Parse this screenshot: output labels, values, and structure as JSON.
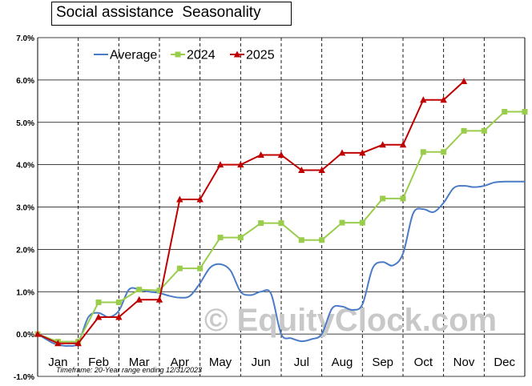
{
  "chart_data": {
    "type": "line",
    "title": "Social assistance  Seasonality",
    "footnote": "Timeframe: 20-Year range ending 12/31/2023",
    "watermark": "© EquityClock.com",
    "months": [
      "Jan",
      "Feb",
      "Mar",
      "Apr",
      "May",
      "Jun",
      "Jul",
      "Aug",
      "Sep",
      "Oct",
      "Nov",
      "Dec"
    ],
    "y_ticks": [
      "-1.0%",
      "0.0%",
      "1.0%",
      "2.0%",
      "3.0%",
      "4.0%",
      "5.0%",
      "6.0%",
      "7.0%"
    ],
    "ylim": [
      -1.0,
      7.0
    ],
    "xlim": [
      0,
      12
    ],
    "grid": "vertical dashed at month boundaries, horizontal at each 1%",
    "legend_position": "top-left",
    "series": [
      {
        "name": "Average",
        "color": "#4a7bc6",
        "marker": "none",
        "smooth": true,
        "x": [
          0,
          0.35,
          0.5,
          0.75,
          1.0,
          1.25,
          1.5,
          1.75,
          2.0,
          2.25,
          2.5,
          2.75,
          3.0,
          3.25,
          3.5,
          3.75,
          4.0,
          4.25,
          4.5,
          4.75,
          5.0,
          5.25,
          5.5,
          5.75,
          6.0,
          6.25,
          6.5,
          6.75,
          7.0,
          7.25,
          7.5,
          7.75,
          8.0,
          8.25,
          8.5,
          8.75,
          9.0,
          9.25,
          9.5,
          9.75,
          10.0,
          10.25,
          10.5,
          10.75,
          11.0,
          11.25,
          11.5,
          11.75,
          12.0
        ],
        "y": [
          0.0,
          -0.2,
          -0.25,
          -0.28,
          -0.2,
          0.4,
          0.5,
          0.4,
          0.55,
          1.05,
          1.05,
          1.0,
          0.97,
          0.9,
          0.86,
          0.9,
          1.2,
          1.57,
          1.65,
          1.5,
          1.0,
          0.92,
          1.0,
          0.95,
          0.0,
          -0.1,
          -0.17,
          -0.12,
          0.0,
          0.6,
          0.65,
          0.57,
          0.7,
          1.55,
          1.7,
          1.62,
          1.9,
          2.85,
          2.95,
          2.88,
          3.1,
          3.45,
          3.5,
          3.47,
          3.5,
          3.58,
          3.6,
          3.6,
          3.6
        ]
      },
      {
        "name": "2024",
        "color": "#9acd4c",
        "marker": "square",
        "smooth": false,
        "x": [
          0,
          0.5,
          1.0,
          1.5,
          2.0,
          2.5,
          3.0,
          3.5,
          4.0,
          4.5,
          5.0,
          5.5,
          6.0,
          6.5,
          7.0,
          7.5,
          8.0,
          8.5,
          9.0,
          9.5,
          10.0,
          10.5,
          11.0,
          11.5,
          12.0
        ],
        "y": [
          0.0,
          -0.18,
          -0.18,
          0.75,
          0.75,
          1.05,
          1.03,
          1.55,
          1.55,
          2.28,
          2.28,
          2.62,
          2.62,
          2.22,
          2.22,
          2.63,
          2.63,
          3.2,
          3.2,
          4.3,
          4.3,
          4.8,
          4.8,
          5.25,
          5.25
        ]
      },
      {
        "name": "2025",
        "color": "#c00000",
        "marker": "triangle",
        "smooth": false,
        "x": [
          0,
          0.5,
          1.0,
          1.5,
          2.0,
          2.5,
          3.0,
          3.5,
          4.0,
          4.5,
          5.0,
          5.5,
          6.0,
          6.5,
          7.0,
          7.5,
          8.0,
          8.5,
          9.0,
          9.5,
          10.0,
          10.5
        ],
        "y": [
          0.0,
          -0.22,
          -0.22,
          0.4,
          0.4,
          0.81,
          0.81,
          3.18,
          3.18,
          4.0,
          4.0,
          4.23,
          4.23,
          3.87,
          3.87,
          4.28,
          4.28,
          4.47,
          4.47,
          5.53,
          5.53,
          5.97
        ]
      }
    ]
  }
}
